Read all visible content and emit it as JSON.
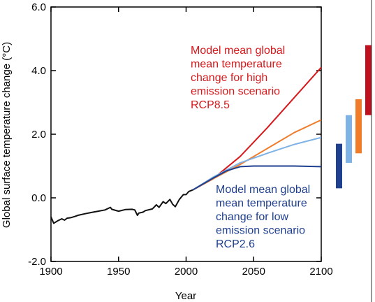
{
  "chart_data": {
    "type": "line",
    "xlabel": "Year",
    "ylabel": "Global surface temperature change (°C)",
    "xlim": [
      1900,
      2100
    ],
    "ylim": [
      -2.0,
      6.0
    ],
    "x_ticks": [
      1900,
      1950,
      2000,
      2050,
      2100
    ],
    "x_tick_labels": [
      "1900",
      "1950",
      "2000",
      "2050",
      "2100"
    ],
    "y_ticks": [
      -2.0,
      0.0,
      2.0,
      4.0,
      6.0
    ],
    "y_tick_labels": [
      "-2.0",
      "0.0",
      "2.0",
      "4.0",
      "6.0"
    ],
    "grid": false,
    "annotations": {
      "high": {
        "lines": [
          "Model mean global",
          "mean temperature",
          "change for high",
          "emission scenario",
          "RCP8.5"
        ],
        "color": "#d7191c"
      },
      "low": {
        "lines": [
          "Model mean global",
          "mean temperature",
          "change for low",
          "emission scenario",
          "RCP2.6"
        ],
        "color": "#1f3f8f"
      }
    },
    "series": [
      {
        "color": "#111111",
        "x": [
          1900,
          1902,
          1905,
          1908,
          1910,
          1912,
          1915,
          1918,
          1920,
          1925,
          1930,
          1935,
          1940,
          1944,
          1945,
          1950,
          1955,
          1960,
          1962,
          1964,
          1965,
          1968,
          1970,
          1975,
          1978,
          1980,
          1983,
          1985,
          1988,
          1990,
          1992,
          1995,
          1998,
          2000,
          2002,
          2005
        ],
        "y": [
          -0.6,
          -0.8,
          -0.72,
          -0.66,
          -0.7,
          -0.64,
          -0.62,
          -0.58,
          -0.55,
          -0.5,
          -0.46,
          -0.42,
          -0.38,
          -0.3,
          -0.36,
          -0.42,
          -0.37,
          -0.36,
          -0.38,
          -0.55,
          -0.48,
          -0.45,
          -0.4,
          -0.35,
          -0.22,
          -0.3,
          -0.12,
          -0.18,
          -0.05,
          -0.2,
          -0.28,
          -0.05,
          0.1,
          0.1,
          0.2,
          0.25
        ]
      },
      {
        "color": "#d7191c",
        "x": [
          2005,
          2020,
          2040,
          2060,
          2080,
          2100
        ],
        "y": [
          0.25,
          0.6,
          1.3,
          2.2,
          3.15,
          4.1
        ]
      },
      {
        "color": "#f07c2a",
        "x": [
          2005,
          2020,
          2040,
          2060,
          2080,
          2100
        ],
        "y": [
          0.25,
          0.6,
          1.05,
          1.55,
          2.05,
          2.45
        ]
      },
      {
        "color": "#7fb2e5",
        "x": [
          2005,
          2020,
          2040,
          2060,
          2080,
          2100
        ],
        "y": [
          0.25,
          0.65,
          1.1,
          1.4,
          1.68,
          1.9
        ]
      },
      {
        "color": "#1f3f8f",
        "x": [
          2005,
          2020,
          2030,
          2040,
          2050,
          2060,
          2080,
          2100
        ],
        "y": [
          0.25,
          0.62,
          0.85,
          0.98,
          1.0,
          1.0,
          1.0,
          0.98
        ]
      }
    ],
    "range_bars": [
      {
        "color": "#1f3f8f",
        "min": 0.3,
        "max": 1.7
      },
      {
        "color": "#7fb2e5",
        "min": 1.1,
        "max": 2.6
      },
      {
        "color": "#f07c2a",
        "min": 1.4,
        "max": 3.1
      },
      {
        "color": "#c0101d",
        "min": 2.6,
        "max": 4.8
      }
    ]
  }
}
